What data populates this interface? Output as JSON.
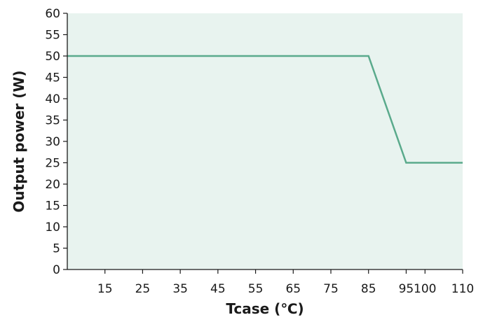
{
  "chart_data": {
    "type": "line",
    "title": "",
    "xlabel": "Tcase (℃)",
    "ylabel": "Output power (W)",
    "xlim": [
      5,
      110
    ],
    "ylim": [
      0,
      60
    ],
    "x_ticks": [
      15,
      25,
      35,
      45,
      55,
      65,
      75,
      85,
      95,
      100,
      110
    ],
    "y_ticks": [
      0,
      5,
      10,
      15,
      20,
      25,
      30,
      35,
      40,
      45,
      50,
      55,
      60
    ],
    "grid": false,
    "series": [
      {
        "color": "#5aaa8c",
        "x": [
          5,
          85,
          95,
          110
        ],
        "y": [
          50,
          50,
          25,
          25
        ]
      }
    ],
    "background_color": "#e8f3ef",
    "axis_color": "#1a1a1a"
  }
}
